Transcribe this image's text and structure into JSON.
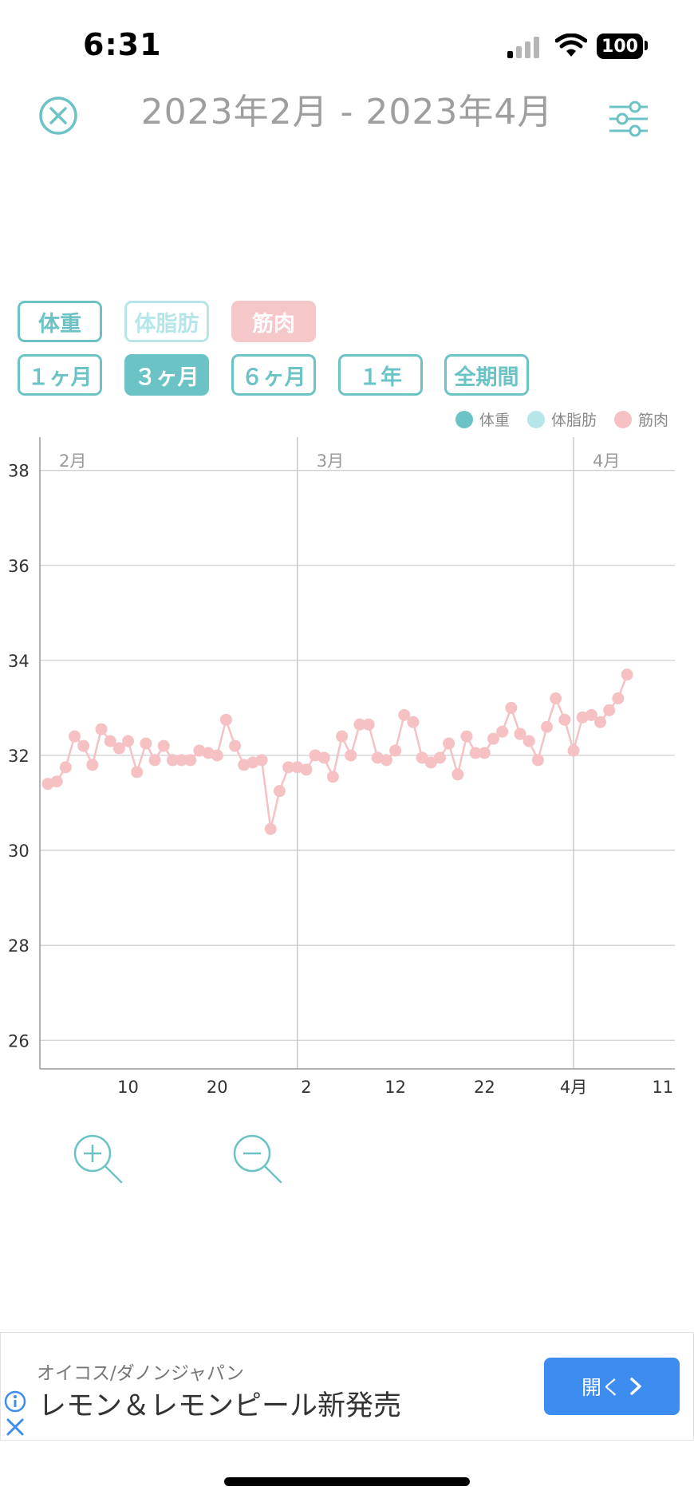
{
  "status_bar": {
    "time": "6:31",
    "battery": "100"
  },
  "header": {
    "title": "2023年2月 - 2023年4月"
  },
  "metric_tabs": [
    {
      "label": "体重",
      "state": "outline"
    },
    {
      "label": "体脂肪",
      "state": "faded"
    },
    {
      "label": "筋肉",
      "state": "selected"
    }
  ],
  "period_tabs": [
    {
      "label": "１ヶ月",
      "selected": false
    },
    {
      "label": "３ヶ月",
      "selected": true
    },
    {
      "label": "６ヶ月",
      "selected": false
    },
    {
      "label": "１年",
      "selected": false
    },
    {
      "label": "全期間",
      "selected": false
    }
  ],
  "legend": [
    {
      "label": "体重",
      "color": "#6cc3c5"
    },
    {
      "label": "体脂肪",
      "color": "#b6e6e8"
    },
    {
      "label": "筋肉",
      "color": "#f5c1c3"
    }
  ],
  "chart_data": {
    "type": "line",
    "ylim": [
      25.4,
      38.7
    ],
    "yticks": [
      26,
      28,
      30,
      32,
      34,
      36,
      38
    ],
    "xlim": [
      "2023-02-01",
      "2023-04-12"
    ],
    "month_labels": [
      "2月",
      "3月",
      "4月"
    ],
    "xtick_labels": [
      "10",
      "20",
      "2",
      "12",
      "22",
      "4月",
      "11"
    ],
    "series": [
      {
        "name": "筋肉",
        "color": "#f5c1c3",
        "points": [
          [
            "2023-02-01",
            31.4
          ],
          [
            "2023-02-02",
            31.45
          ],
          [
            "2023-02-03",
            31.75
          ],
          [
            "2023-02-04",
            32.4
          ],
          [
            "2023-02-05",
            32.2
          ],
          [
            "2023-02-06",
            31.8
          ],
          [
            "2023-02-07",
            32.55
          ],
          [
            "2023-02-08",
            32.3
          ],
          [
            "2023-02-09",
            32.15
          ],
          [
            "2023-02-10",
            32.3
          ],
          [
            "2023-02-11",
            31.65
          ],
          [
            "2023-02-12",
            32.25
          ],
          [
            "2023-02-13",
            31.9
          ],
          [
            "2023-02-14",
            32.2
          ],
          [
            "2023-02-15",
            31.9
          ],
          [
            "2023-02-16",
            31.9
          ],
          [
            "2023-02-17",
            31.9
          ],
          [
            "2023-02-18",
            32.1
          ],
          [
            "2023-02-19",
            32.05
          ],
          [
            "2023-02-20",
            32.0
          ],
          [
            "2023-02-21",
            32.75
          ],
          [
            "2023-02-22",
            32.2
          ],
          [
            "2023-02-23",
            31.8
          ],
          [
            "2023-02-24",
            31.85
          ],
          [
            "2023-02-25",
            31.9
          ],
          [
            "2023-02-26",
            30.45
          ],
          [
            "2023-02-27",
            31.25
          ],
          [
            "2023-02-28",
            31.75
          ],
          [
            "2023-03-01",
            31.75
          ],
          [
            "2023-03-02",
            31.7
          ],
          [
            "2023-03-03",
            32.0
          ],
          [
            "2023-03-04",
            31.95
          ],
          [
            "2023-03-05",
            31.55
          ],
          [
            "2023-03-06",
            32.4
          ],
          [
            "2023-03-07",
            32.0
          ],
          [
            "2023-03-08",
            32.65
          ],
          [
            "2023-03-09",
            32.65
          ],
          [
            "2023-03-10",
            31.95
          ],
          [
            "2023-03-11",
            31.9
          ],
          [
            "2023-03-12",
            32.1
          ],
          [
            "2023-03-13",
            32.85
          ],
          [
            "2023-03-14",
            32.7
          ],
          [
            "2023-03-15",
            31.95
          ],
          [
            "2023-03-16",
            31.85
          ],
          [
            "2023-03-17",
            31.95
          ],
          [
            "2023-03-18",
            32.25
          ],
          [
            "2023-03-19",
            31.6
          ],
          [
            "2023-03-20",
            32.4
          ],
          [
            "2023-03-21",
            32.05
          ],
          [
            "2023-03-22",
            32.05
          ],
          [
            "2023-03-23",
            32.35
          ],
          [
            "2023-03-24",
            32.5
          ],
          [
            "2023-03-25",
            33.0
          ],
          [
            "2023-03-26",
            32.45
          ],
          [
            "2023-03-27",
            32.3
          ],
          [
            "2023-03-28",
            31.9
          ],
          [
            "2023-03-29",
            32.6
          ],
          [
            "2023-03-30",
            33.2
          ],
          [
            "2023-03-31",
            32.75
          ],
          [
            "2023-04-01",
            32.1
          ],
          [
            "2023-04-02",
            32.8
          ],
          [
            "2023-04-03",
            32.85
          ],
          [
            "2023-04-04",
            32.7
          ],
          [
            "2023-04-05",
            32.95
          ],
          [
            "2023-04-06",
            33.2
          ],
          [
            "2023-04-07",
            33.7
          ]
        ]
      }
    ]
  },
  "ad": {
    "sponsor": "オイコス/ダノンジャパン",
    "headline": "レモン＆レモンピール新発売",
    "button_label": "開く"
  }
}
